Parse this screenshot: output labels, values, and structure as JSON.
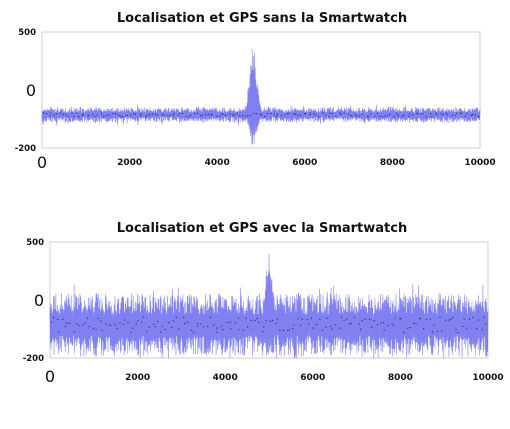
{
  "chart_data": [
    {
      "type": "line",
      "title": "Localisation et GPS sans la Smartwatch",
      "xlim": [
        0,
        10000
      ],
      "ylim": [
        -200,
        500
      ],
      "x_ticks": [
        {
          "value": 0,
          "label": "0"
        },
        {
          "value": 2000,
          "label": "2000"
        },
        {
          "value": 4000,
          "label": "4000"
        },
        {
          "value": 6000,
          "label": "6000"
        },
        {
          "value": 8000,
          "label": "8000"
        },
        {
          "value": 10000,
          "label": "10000"
        }
      ],
      "y_ticks": [
        {
          "value": 500,
          "label": "500"
        },
        {
          "value": 0,
          "label": "0"
        },
        {
          "value": -200,
          "label": "-200"
        }
      ],
      "series_color": "#5555ee",
      "baseline_amplitude": 45,
      "burst": {
        "center": 4820,
        "width": 260,
        "peak": 430,
        "trough": -200
      }
    },
    {
      "type": "line",
      "title": "Localisation et GPS avec la Smartwatch",
      "xlim": [
        0,
        10000
      ],
      "ylim": [
        -200,
        500
      ],
      "x_ticks": [
        {
          "value": 0,
          "label": "0"
        },
        {
          "value": 2000,
          "label": "2000"
        },
        {
          "value": 4000,
          "label": "4000"
        },
        {
          "value": 6000,
          "label": "6000"
        },
        {
          "value": 8000,
          "label": "8000"
        },
        {
          "value": 10000,
          "label": "10000"
        }
      ],
      "y_ticks": [
        {
          "value": 500,
          "label": "500"
        },
        {
          "value": 0,
          "label": "0"
        },
        {
          "value": -200,
          "label": "-200"
        }
      ],
      "series_color": "#5555ee",
      "baseline_amplitude": 190,
      "burst": {
        "center": 5000,
        "width": 220,
        "peak": 500,
        "trough": -200
      }
    }
  ]
}
